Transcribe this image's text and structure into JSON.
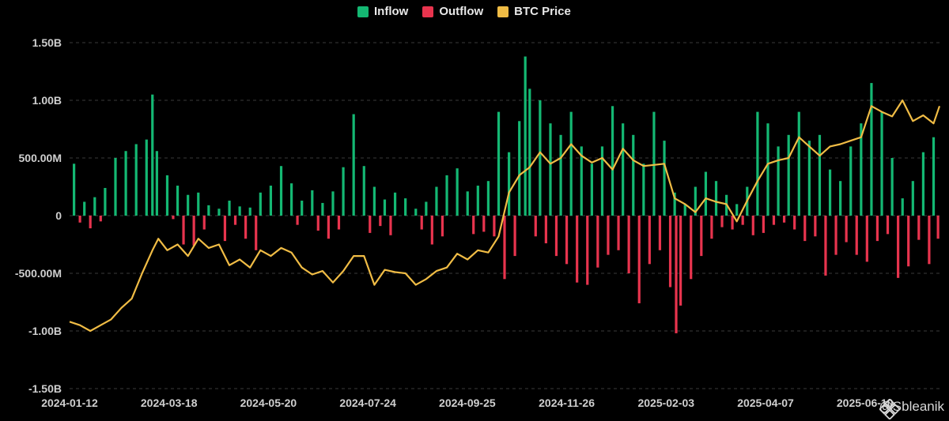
{
  "legend": {
    "inflow_label": "Inflow",
    "outflow_label": "Outflow",
    "price_label": "BTC Price"
  },
  "watermark": "@Sbleanik",
  "colors": {
    "inflow": "#14b873",
    "outflow": "#e8344e",
    "price": "#f0bc45",
    "grid": "#3a3a3a",
    "text": "#cfcfcf"
  },
  "chart_data": {
    "type": "bar",
    "title": "",
    "xlabel": "",
    "ylabel": "",
    "ylim": [
      -1500000000,
      1500000000
    ],
    "y_ticks": [
      {
        "value": 1500000000,
        "label": "1.50B"
      },
      {
        "value": 1000000000,
        "label": "1.00B"
      },
      {
        "value": 500000000,
        "label": "500.00M"
      },
      {
        "value": 0,
        "label": "0"
      },
      {
        "value": -500000000,
        "label": "-500.00M"
      },
      {
        "value": -1000000000,
        "label": "-1.00B"
      },
      {
        "value": -1500000000,
        "label": "-1.50B"
      }
    ],
    "x_range": [
      "2024-01-12",
      "2025-08-22"
    ],
    "x_tick_labels": [
      "2024-01-12",
      "2024-03-18",
      "2024-05-20",
      "2024-07-24",
      "2024-09-25",
      "2024-11-26",
      "2025-02-03",
      "2025-04-07",
      "2025-06-10"
    ],
    "grid": true,
    "legend_position": "top-center",
    "series": [
      {
        "name": "Inflow",
        "type": "bar",
        "points": [
          [
            "2024-01-15",
            450000000
          ],
          [
            "2024-01-22",
            120000000
          ],
          [
            "2024-01-29",
            160000000
          ],
          [
            "2024-02-05",
            240000000
          ],
          [
            "2024-02-12",
            500000000
          ],
          [
            "2024-02-19",
            560000000
          ],
          [
            "2024-02-26",
            620000000
          ],
          [
            "2024-03-04",
            660000000
          ],
          [
            "2024-03-08",
            1050000000
          ],
          [
            "2024-03-11",
            560000000
          ],
          [
            "2024-03-18",
            350000000
          ],
          [
            "2024-03-25",
            260000000
          ],
          [
            "2024-04-01",
            180000000
          ],
          [
            "2024-04-08",
            200000000
          ],
          [
            "2024-04-15",
            90000000
          ],
          [
            "2024-04-22",
            60000000
          ],
          [
            "2024-04-29",
            130000000
          ],
          [
            "2024-05-06",
            80000000
          ],
          [
            "2024-05-13",
            70000000
          ],
          [
            "2024-05-20",
            200000000
          ],
          [
            "2024-05-27",
            260000000
          ],
          [
            "2024-06-03",
            430000000
          ],
          [
            "2024-06-10",
            280000000
          ],
          [
            "2024-06-17",
            130000000
          ],
          [
            "2024-06-24",
            220000000
          ],
          [
            "2024-07-01",
            110000000
          ],
          [
            "2024-07-08",
            210000000
          ],
          [
            "2024-07-15",
            420000000
          ],
          [
            "2024-07-22",
            880000000
          ],
          [
            "2024-07-29",
            430000000
          ],
          [
            "2024-08-05",
            250000000
          ],
          [
            "2024-08-12",
            140000000
          ],
          [
            "2024-08-19",
            200000000
          ],
          [
            "2024-08-26",
            150000000
          ],
          [
            "2024-09-02",
            60000000
          ],
          [
            "2024-09-09",
            120000000
          ],
          [
            "2024-09-16",
            250000000
          ],
          [
            "2024-09-23",
            350000000
          ],
          [
            "2024-09-30",
            410000000
          ],
          [
            "2024-10-07",
            210000000
          ],
          [
            "2024-10-14",
            260000000
          ],
          [
            "2024-10-21",
            300000000
          ],
          [
            "2024-10-28",
            900000000
          ],
          [
            "2024-11-04",
            550000000
          ],
          [
            "2024-11-11",
            820000000
          ],
          [
            "2024-11-15",
            1380000000
          ],
          [
            "2024-11-18",
            1100000000
          ],
          [
            "2024-11-25",
            1000000000
          ],
          [
            "2024-12-02",
            800000000
          ],
          [
            "2024-12-09",
            700000000
          ],
          [
            "2024-12-16",
            900000000
          ],
          [
            "2024-12-23",
            600000000
          ],
          [
            "2024-12-30",
            450000000
          ],
          [
            "2025-01-06",
            600000000
          ],
          [
            "2025-01-13",
            950000000
          ],
          [
            "2025-01-20",
            800000000
          ],
          [
            "2025-01-27",
            700000000
          ],
          [
            "2025-02-03",
            450000000
          ],
          [
            "2025-02-10",
            900000000
          ],
          [
            "2025-02-17",
            650000000
          ],
          [
            "2025-02-24",
            200000000
          ],
          [
            "2025-03-03",
            100000000
          ],
          [
            "2025-03-10",
            250000000
          ],
          [
            "2025-03-17",
            380000000
          ],
          [
            "2025-03-24",
            300000000
          ],
          [
            "2025-03-31",
            180000000
          ],
          [
            "2025-04-07",
            100000000
          ],
          [
            "2025-04-14",
            250000000
          ],
          [
            "2025-04-21",
            900000000
          ],
          [
            "2025-04-28",
            800000000
          ],
          [
            "2025-05-05",
            600000000
          ],
          [
            "2025-05-12",
            700000000
          ],
          [
            "2025-05-19",
            900000000
          ],
          [
            "2025-05-26",
            650000000
          ],
          [
            "2025-06-02",
            700000000
          ],
          [
            "2025-06-09",
            400000000
          ],
          [
            "2025-06-16",
            300000000
          ],
          [
            "2025-06-23",
            600000000
          ],
          [
            "2025-06-30",
            800000000
          ],
          [
            "2025-07-07",
            1150000000
          ],
          [
            "2025-07-14",
            900000000
          ],
          [
            "2025-07-21",
            500000000
          ],
          [
            "2025-07-28",
            150000000
          ],
          [
            "2025-08-04",
            300000000
          ],
          [
            "2025-08-11",
            550000000
          ],
          [
            "2025-08-18",
            680000000
          ]
        ]
      },
      {
        "name": "Outflow",
        "type": "bar",
        "points": [
          [
            "2024-01-19",
            -60000000
          ],
          [
            "2024-01-26",
            -110000000
          ],
          [
            "2024-02-02",
            -50000000
          ],
          [
            "2024-03-22",
            -30000000
          ],
          [
            "2024-03-29",
            -250000000
          ],
          [
            "2024-04-05",
            -260000000
          ],
          [
            "2024-04-12",
            -120000000
          ],
          [
            "2024-04-26",
            -220000000
          ],
          [
            "2024-05-03",
            -80000000
          ],
          [
            "2024-05-10",
            -200000000
          ],
          [
            "2024-05-17",
            -300000000
          ],
          [
            "2024-06-14",
            -80000000
          ],
          [
            "2024-06-28",
            -130000000
          ],
          [
            "2024-07-05",
            -200000000
          ],
          [
            "2024-07-12",
            -120000000
          ],
          [
            "2024-08-02",
            -150000000
          ],
          [
            "2024-08-09",
            -90000000
          ],
          [
            "2024-08-16",
            -170000000
          ],
          [
            "2024-09-06",
            -120000000
          ],
          [
            "2024-09-13",
            -250000000
          ],
          [
            "2024-09-20",
            -180000000
          ],
          [
            "2024-10-11",
            -160000000
          ],
          [
            "2024-10-18",
            -140000000
          ],
          [
            "2024-10-25",
            -180000000
          ],
          [
            "2024-11-01",
            -550000000
          ],
          [
            "2024-11-08",
            -350000000
          ],
          [
            "2024-11-22",
            -180000000
          ],
          [
            "2024-11-29",
            -240000000
          ],
          [
            "2024-12-06",
            -350000000
          ],
          [
            "2024-12-13",
            -420000000
          ],
          [
            "2024-12-20",
            -580000000
          ],
          [
            "2024-12-27",
            -600000000
          ],
          [
            "2025-01-03",
            -450000000
          ],
          [
            "2025-01-10",
            -340000000
          ],
          [
            "2025-01-17",
            -300000000
          ],
          [
            "2025-01-24",
            -500000000
          ],
          [
            "2025-01-31",
            -760000000
          ],
          [
            "2025-02-07",
            -420000000
          ],
          [
            "2025-02-14",
            -300000000
          ],
          [
            "2025-02-21",
            -620000000
          ],
          [
            "2025-02-25",
            -1020000000
          ],
          [
            "2025-02-28",
            -780000000
          ],
          [
            "2025-03-07",
            -550000000
          ],
          [
            "2025-03-14",
            -350000000
          ],
          [
            "2025-03-21",
            -200000000
          ],
          [
            "2025-03-28",
            -100000000
          ],
          [
            "2025-04-04",
            -120000000
          ],
          [
            "2025-04-11",
            -80000000
          ],
          [
            "2025-04-18",
            -170000000
          ],
          [
            "2025-04-25",
            -150000000
          ],
          [
            "2025-05-02",
            -80000000
          ],
          [
            "2025-05-09",
            -60000000
          ],
          [
            "2025-05-16",
            -120000000
          ],
          [
            "2025-05-23",
            -220000000
          ],
          [
            "2025-05-30",
            -180000000
          ],
          [
            "2025-06-06",
            -520000000
          ],
          [
            "2025-06-13",
            -340000000
          ],
          [
            "2025-06-20",
            -230000000
          ],
          [
            "2025-06-27",
            -340000000
          ],
          [
            "2025-07-04",
            -400000000
          ],
          [
            "2025-07-11",
            -220000000
          ],
          [
            "2025-07-18",
            -160000000
          ],
          [
            "2025-07-25",
            -540000000
          ],
          [
            "2025-08-01",
            -440000000
          ],
          [
            "2025-08-08",
            -210000000
          ],
          [
            "2025-08-15",
            -420000000
          ],
          [
            "2025-08-21",
            -200000000
          ]
        ]
      },
      {
        "name": "BTC Price",
        "type": "line",
        "points": [
          [
            "2024-01-12",
            -920000000
          ],
          [
            "2024-01-19",
            -950000000
          ],
          [
            "2024-01-26",
            -1000000000
          ],
          [
            "2024-02-02",
            -950000000
          ],
          [
            "2024-02-09",
            -900000000
          ],
          [
            "2024-02-16",
            -800000000
          ],
          [
            "2024-02-23",
            -720000000
          ],
          [
            "2024-03-01",
            -500000000
          ],
          [
            "2024-03-08",
            -300000000
          ],
          [
            "2024-03-12",
            -200000000
          ],
          [
            "2024-03-18",
            -300000000
          ],
          [
            "2024-03-25",
            -250000000
          ],
          [
            "2024-04-01",
            -350000000
          ],
          [
            "2024-04-08",
            -200000000
          ],
          [
            "2024-04-15",
            -280000000
          ],
          [
            "2024-04-22",
            -250000000
          ],
          [
            "2024-04-29",
            -430000000
          ],
          [
            "2024-05-06",
            -380000000
          ],
          [
            "2024-05-13",
            -450000000
          ],
          [
            "2024-05-20",
            -300000000
          ],
          [
            "2024-05-27",
            -350000000
          ],
          [
            "2024-06-03",
            -280000000
          ],
          [
            "2024-06-10",
            -320000000
          ],
          [
            "2024-06-17",
            -450000000
          ],
          [
            "2024-06-24",
            -510000000
          ],
          [
            "2024-07-01",
            -480000000
          ],
          [
            "2024-07-08",
            -580000000
          ],
          [
            "2024-07-15",
            -480000000
          ],
          [
            "2024-07-22",
            -350000000
          ],
          [
            "2024-07-29",
            -350000000
          ],
          [
            "2024-08-05",
            -600000000
          ],
          [
            "2024-08-12",
            -470000000
          ],
          [
            "2024-08-19",
            -490000000
          ],
          [
            "2024-08-26",
            -500000000
          ],
          [
            "2024-09-02",
            -600000000
          ],
          [
            "2024-09-09",
            -550000000
          ],
          [
            "2024-09-16",
            -480000000
          ],
          [
            "2024-09-23",
            -450000000
          ],
          [
            "2024-09-30",
            -330000000
          ],
          [
            "2024-10-07",
            -380000000
          ],
          [
            "2024-10-14",
            -300000000
          ],
          [
            "2024-10-21",
            -320000000
          ],
          [
            "2024-10-28",
            -180000000
          ],
          [
            "2024-11-04",
            200000000
          ],
          [
            "2024-11-11",
            350000000
          ],
          [
            "2024-11-18",
            420000000
          ],
          [
            "2024-11-25",
            550000000
          ],
          [
            "2024-12-02",
            450000000
          ],
          [
            "2024-12-09",
            500000000
          ],
          [
            "2024-12-16",
            620000000
          ],
          [
            "2024-12-23",
            520000000
          ],
          [
            "2024-12-30",
            460000000
          ],
          [
            "2025-01-06",
            500000000
          ],
          [
            "2025-01-13",
            400000000
          ],
          [
            "2025-01-20",
            580000000
          ],
          [
            "2025-01-27",
            480000000
          ],
          [
            "2025-02-03",
            430000000
          ],
          [
            "2025-02-10",
            440000000
          ],
          [
            "2025-02-17",
            450000000
          ],
          [
            "2025-02-24",
            150000000
          ],
          [
            "2025-03-03",
            100000000
          ],
          [
            "2025-03-10",
            30000000
          ],
          [
            "2025-03-17",
            150000000
          ],
          [
            "2025-03-24",
            120000000
          ],
          [
            "2025-03-31",
            100000000
          ],
          [
            "2025-04-07",
            -50000000
          ],
          [
            "2025-04-14",
            130000000
          ],
          [
            "2025-04-21",
            300000000
          ],
          [
            "2025-04-28",
            450000000
          ],
          [
            "2025-05-05",
            480000000
          ],
          [
            "2025-05-12",
            500000000
          ],
          [
            "2025-05-19",
            680000000
          ],
          [
            "2025-05-26",
            600000000
          ],
          [
            "2025-06-02",
            520000000
          ],
          [
            "2025-06-09",
            600000000
          ],
          [
            "2025-06-16",
            620000000
          ],
          [
            "2025-06-23",
            650000000
          ],
          [
            "2025-06-30",
            680000000
          ],
          [
            "2025-07-07",
            950000000
          ],
          [
            "2025-07-14",
            900000000
          ],
          [
            "2025-07-21",
            860000000
          ],
          [
            "2025-07-28",
            1000000000
          ],
          [
            "2025-08-04",
            820000000
          ],
          [
            "2025-08-11",
            870000000
          ],
          [
            "2025-08-18",
            800000000
          ],
          [
            "2025-08-22",
            950000000
          ]
        ]
      }
    ]
  }
}
